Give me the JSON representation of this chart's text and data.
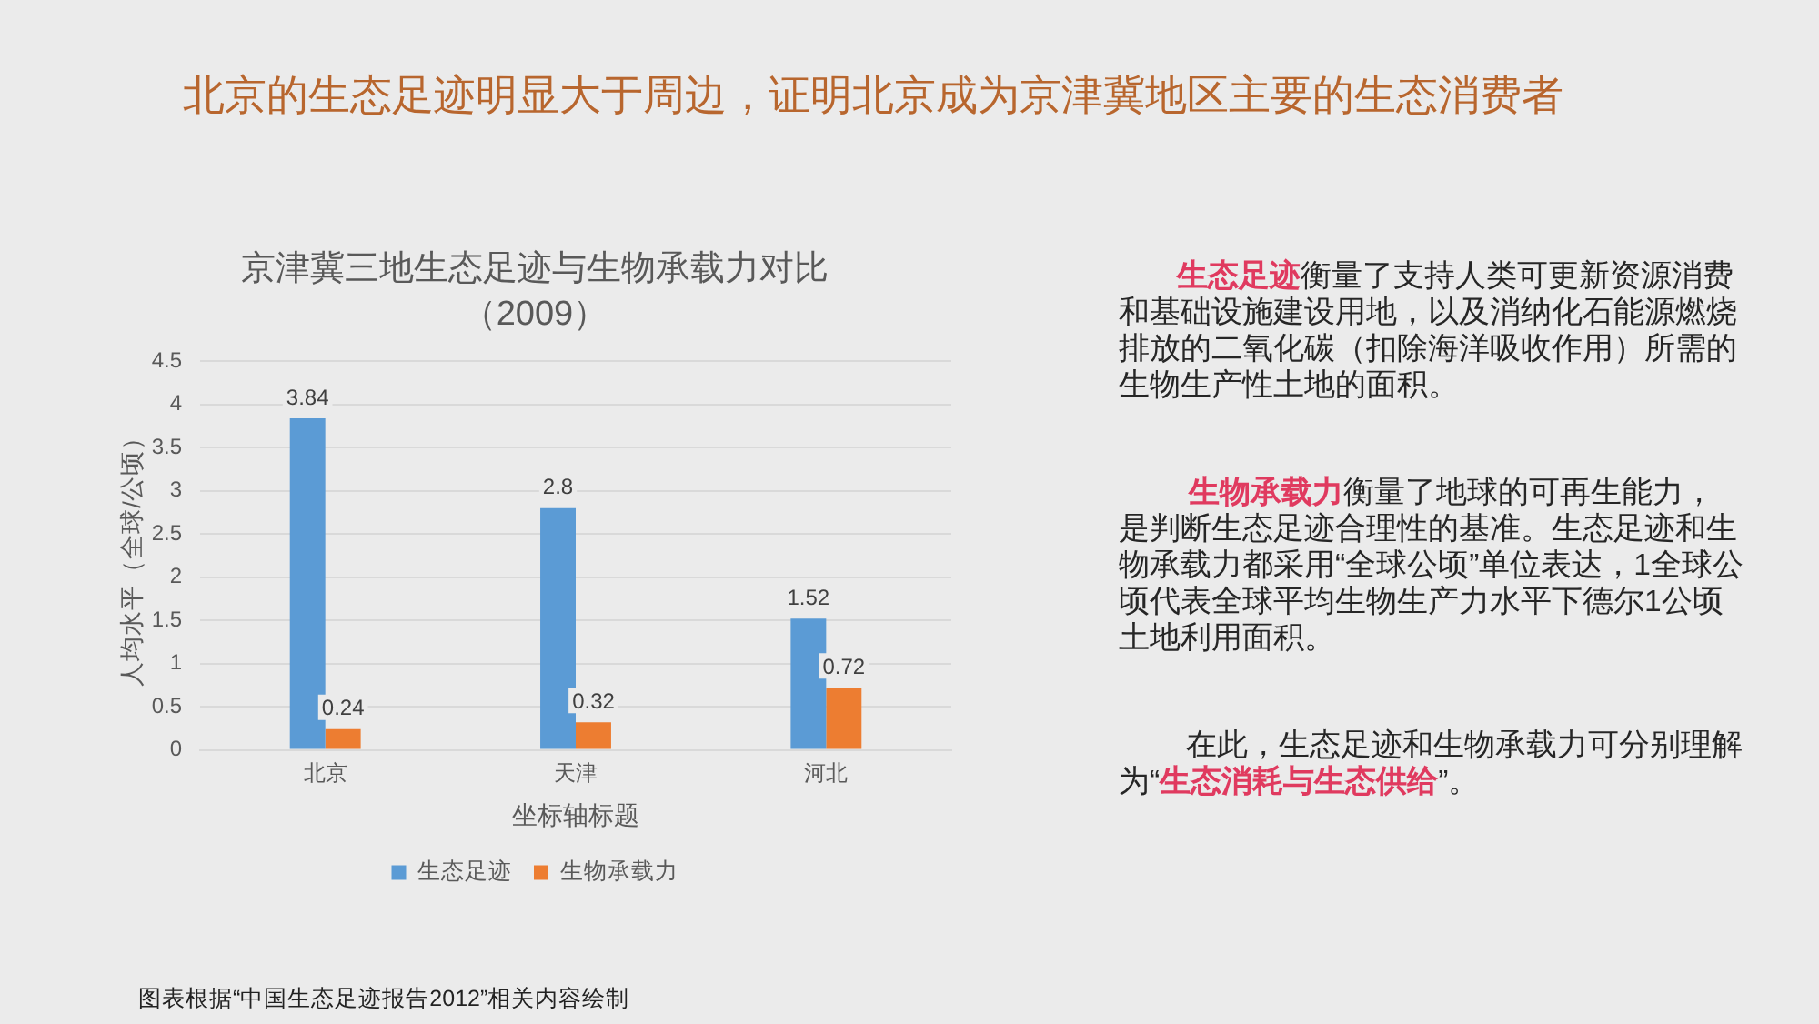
{
  "chart_data": {
    "type": "bar",
    "title": "京津冀三地生态足迹与生物承载力对比",
    "subtitle": "（2009）",
    "xlabel": "坐标轴标题",
    "ylabel": "人均水平（全球/公顷）",
    "categories": [
      "北京",
      "天津",
      "河北"
    ],
    "series": [
      {
        "name": "生态足迹",
        "color": "#5b9bd5",
        "values": [
          3.84,
          2.8,
          1.52
        ]
      },
      {
        "name": "生物承载力",
        "color": "#ed7d31",
        "values": [
          0.24,
          0.32,
          0.72
        ]
      }
    ],
    "ylim": [
      0,
      4.5
    ],
    "yticks": [
      0,
      0.5,
      1,
      1.5,
      2,
      2.5,
      3,
      3.5,
      4,
      4.5
    ],
    "grid": "y",
    "legend": "bottom",
    "data_labels": true,
    "annotations": [
      "北京的生态足迹明显大于周边，证明北京成为京津冀地区主要的生态消费者",
      "生态足迹衡量了支持人类可更新资源消费和基础设施建设用地，以及消纳化石能源燃烧排放的二氧化碳（扣除海洋吸收作用）所需的生物生产性土地的面积。",
      "生物承载力衡量了地球的可再生能力，是判断生态足迹合理性的基准。生态足迹和生物承载力都采用“全球公顷”单位表达，1全球公顷代表全球平均生物生产力水平下德尔1公顷土地利用面积。",
      "在此，生态足迹和生物承载力可分别理解为“生态消耗与生态供给”。",
      "图表根据“中国生态足迹报告2012”相关内容绘制"
    ]
  }
}
